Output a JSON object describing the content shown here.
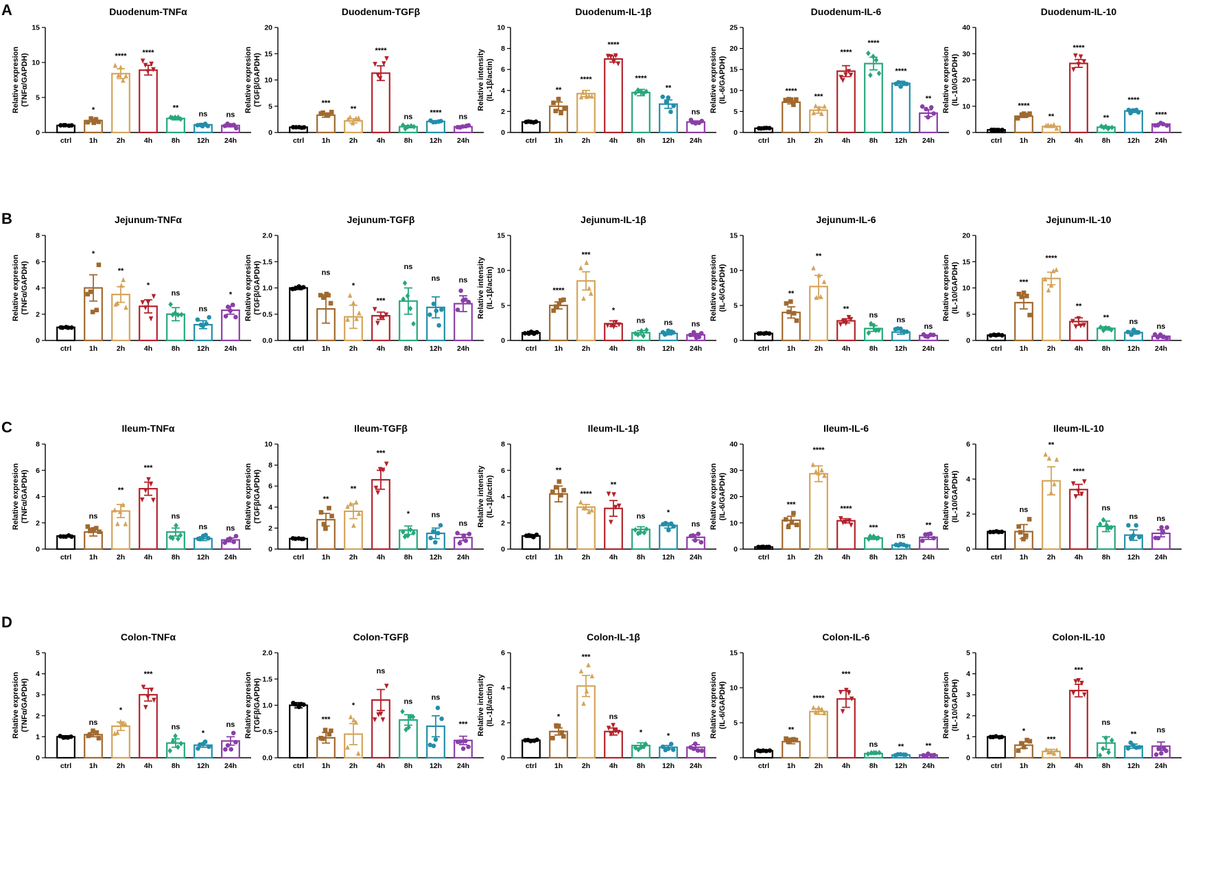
{
  "colors": {
    "ctrl": "#000000",
    "1h": "#a0692e",
    "2h": "#d4a45a",
    "4h": "#b3232b",
    "8h": "#27a87a",
    "12h": "#238ea9",
    "24h": "#8a3ea8"
  },
  "panels": [
    {
      "letter": "A"
    },
    {
      "letter": "B"
    },
    {
      "letter": "C"
    },
    {
      "letter": "D"
    }
  ],
  "chart_data": [
    {
      "type": "bar",
      "title": "Duodenum-TNFα",
      "ylabel": [
        "Relative expresion",
        "(TNFα/GAPDH)"
      ],
      "ylim": [
        0,
        15
      ],
      "yticks": [
        0,
        5,
        10,
        15
      ],
      "categories": [
        "ctrl",
        "1h",
        "2h",
        "4h",
        "8h",
        "12h",
        "24h"
      ],
      "values": [
        1.0,
        1.7,
        8.4,
        8.9,
        2.0,
        1.1,
        1.0
      ],
      "errors": [
        0.1,
        0.2,
        0.7,
        0.7,
        0.2,
        0.2,
        0.2
      ],
      "significance": [
        "",
        "*",
        "****",
        "****",
        "**",
        "ns",
        "ns"
      ]
    },
    {
      "type": "bar",
      "title": "Duodenum-TGFβ",
      "ylabel": [
        "Relative expresion",
        "(TGFβ/GAPDH)"
      ],
      "ylim": [
        0,
        20
      ],
      "yticks": [
        0,
        5,
        10,
        15,
        20
      ],
      "categories": [
        "ctrl",
        "1h",
        "2h",
        "4h",
        "8h",
        "12h",
        "24h"
      ],
      "values": [
        1.0,
        3.3,
        2.2,
        11.3,
        1.1,
        2.1,
        1.1
      ],
      "errors": [
        0.1,
        0.4,
        0.4,
        1.4,
        0.2,
        0.1,
        0.2
      ],
      "significance": [
        "",
        "***",
        "**",
        "****",
        "ns",
        "****",
        "ns"
      ]
    },
    {
      "type": "bar",
      "title": "Duodenum-IL-1β",
      "ylabel": [
        "Relative intensity",
        "(IL-1β/actin)"
      ],
      "ylim": [
        0,
        10
      ],
      "yticks": [
        0,
        2,
        4,
        6,
        8,
        10
      ],
      "categories": [
        "ctrl",
        "1h",
        "2h",
        "4h",
        "8h",
        "12h",
        "24h"
      ],
      "values": [
        1.0,
        2.5,
        3.7,
        7.0,
        3.8,
        2.7,
        1.0
      ],
      "errors": [
        0.05,
        0.4,
        0.3,
        0.3,
        0.3,
        0.4,
        0.1
      ],
      "significance": [
        "",
        "**",
        "****",
        "****",
        "****",
        "**",
        "ns"
      ]
    },
    {
      "type": "bar",
      "title": "Duodenum-IL-6",
      "ylabel": [
        "Relative expresion",
        "(IL-6/GAPDH)"
      ],
      "ylim": [
        0,
        25
      ],
      "yticks": [
        0,
        5,
        10,
        15,
        20,
        25
      ],
      "categories": [
        "ctrl",
        "1h",
        "2h",
        "4h",
        "8h",
        "12h",
        "24h"
      ],
      "values": [
        1.0,
        7.2,
        5.3,
        14.6,
        16.4,
        11.7,
        4.6
      ],
      "errors": [
        0.1,
        0.4,
        0.7,
        1.3,
        1.5,
        0.5,
        0.8
      ],
      "significance": [
        "",
        "****",
        "***",
        "****",
        "****",
        "****",
        "**"
      ]
    },
    {
      "type": "bar",
      "title": "Duodenum-IL-10",
      "ylabel": [
        "Relative expresion",
        "(IL-10/GAPDH)"
      ],
      "ylim": [
        0,
        40
      ],
      "yticks": [
        0,
        10,
        20,
        30,
        40
      ],
      "categories": [
        "ctrl",
        "1h",
        "2h",
        "4h",
        "8h",
        "12h",
        "24h"
      ],
      "values": [
        1.0,
        6.2,
        2.3,
        26.3,
        2.0,
        8.2,
        3.2
      ],
      "errors": [
        0.1,
        0.5,
        0.4,
        1.5,
        0.3,
        0.6,
        0.3
      ],
      "significance": [
        "",
        "****",
        "**",
        "****",
        "**",
        "****",
        "****"
      ]
    },
    {
      "type": "bar",
      "title": "Jejunum-TNFα",
      "ylabel": [
        "Relative expresion",
        "(TNFα/GAPDH)"
      ],
      "ylim": [
        0,
        8
      ],
      "yticks": [
        0,
        2,
        4,
        6,
        8
      ],
      "categories": [
        "ctrl",
        "1h",
        "2h",
        "4h",
        "8h",
        "12h",
        "24h"
      ],
      "values": [
        1.0,
        4.0,
        3.5,
        2.6,
        2.0,
        1.2,
        2.3
      ],
      "errors": [
        0.05,
        1.0,
        0.6,
        0.5,
        0.5,
        0.3,
        0.3
      ],
      "significance": [
        "",
        "*",
        "**",
        "*",
        "ns",
        "ns",
        "*"
      ]
    },
    {
      "type": "bar",
      "title": "Jejunum-TGFβ",
      "ylabel": [
        "Relative expresion",
        "(TGFβ/GAPDH)"
      ],
      "ylim": [
        0,
        2.0
      ],
      "yticks": [
        0.0,
        0.5,
        1.0,
        1.5,
        2.0
      ],
      "decimals": 1,
      "categories": [
        "ctrl",
        "1h",
        "2h",
        "4h",
        "8h",
        "12h",
        "24h"
      ],
      "values": [
        1.0,
        0.6,
        0.45,
        0.47,
        0.75,
        0.63,
        0.7
      ],
      "errors": [
        0.03,
        0.27,
        0.22,
        0.07,
        0.25,
        0.2,
        0.15
      ],
      "significance": [
        "",
        "ns",
        "*",
        "***",
        "ns",
        "ns",
        "ns"
      ]
    },
    {
      "type": "bar",
      "title": "Jejunum-IL-1β",
      "ylabel": [
        "Relative intensity",
        "(IL-1β/actin)"
      ],
      "ylim": [
        0,
        15
      ],
      "yticks": [
        0,
        5,
        10,
        15
      ],
      "categories": [
        "ctrl",
        "1h",
        "2h",
        "4h",
        "8h",
        "12h",
        "24h"
      ],
      "values": [
        1.1,
        5.0,
        8.5,
        2.4,
        1.1,
        1.0,
        0.8
      ],
      "errors": [
        0.2,
        0.5,
        1.3,
        0.4,
        0.3,
        0.2,
        0.2
      ],
      "significance": [
        "",
        "****",
        "***",
        "*",
        "ns",
        "ns",
        "ns"
      ]
    },
    {
      "type": "bar",
      "title": "Jejunum-IL-6",
      "ylabel": [
        "Relative expresion",
        "(IL-6/GAPDH)"
      ],
      "ylim": [
        0,
        15
      ],
      "yticks": [
        0,
        5,
        10,
        15
      ],
      "categories": [
        "ctrl",
        "1h",
        "2h",
        "4h",
        "8h",
        "12h",
        "24h"
      ],
      "values": [
        1.0,
        4.0,
        7.7,
        2.8,
        1.7,
        1.2,
        0.7
      ],
      "errors": [
        0.05,
        0.8,
        1.6,
        0.3,
        0.4,
        0.3,
        0.1
      ],
      "significance": [
        "",
        "**",
        "**",
        "**",
        "ns",
        "ns",
        "ns"
      ]
    },
    {
      "type": "bar",
      "title": "Jejunum-IL-10",
      "ylabel": [
        "Relative expresion",
        "(IL-10/GAPDH)"
      ],
      "ylim": [
        0,
        20
      ],
      "yticks": [
        0,
        5,
        10,
        15,
        20
      ],
      "categories": [
        "ctrl",
        "1h",
        "2h",
        "4h",
        "8h",
        "12h",
        "24h"
      ],
      "values": [
        1.0,
        7.2,
        11.8,
        3.6,
        2.3,
        1.5,
        0.8
      ],
      "errors": [
        0.1,
        1.2,
        1.2,
        0.7,
        0.3,
        0.3,
        0.2
      ],
      "significance": [
        "",
        "***",
        "****",
        "**",
        "**",
        "ns",
        "ns"
      ]
    },
    {
      "type": "bar",
      "title": "Ileum-TNFα",
      "ylabel": [
        "Relative expresion",
        "(TNFα/GAPDH)"
      ],
      "ylim": [
        0,
        8
      ],
      "yticks": [
        0,
        2,
        4,
        6,
        8
      ],
      "categories": [
        "ctrl",
        "1h",
        "2h",
        "4h",
        "8h",
        "12h",
        "24h"
      ],
      "values": [
        1.0,
        1.3,
        2.9,
        4.6,
        1.3,
        0.8,
        0.7
      ],
      "errors": [
        0.05,
        0.3,
        0.5,
        0.5,
        0.3,
        0.15,
        0.15
      ],
      "significance": [
        "",
        "ns",
        "**",
        "***",
        "ns",
        "ns",
        "ns"
      ]
    },
    {
      "type": "bar",
      "title": "Ileum-TGFβ",
      "ylabel": [
        "Relative expresion",
        "(TGFβ/GAPDH)"
      ],
      "ylim": [
        0,
        10
      ],
      "yticks": [
        0,
        2,
        4,
        6,
        8,
        10
      ],
      "categories": [
        "ctrl",
        "1h",
        "2h",
        "4h",
        "8h",
        "12h",
        "24h"
      ],
      "values": [
        1.0,
        2.8,
        3.6,
        6.6,
        1.8,
        1.5,
        1.1
      ],
      "errors": [
        0.05,
        0.6,
        0.7,
        0.9,
        0.4,
        0.5,
        0.3
      ],
      "significance": [
        "",
        "**",
        "**",
        "***",
        "*",
        "ns",
        "ns"
      ]
    },
    {
      "type": "bar",
      "title": "Ileum-IL-1β",
      "ylabel": [
        "Relative intensity",
        "(IL-1β/actin)"
      ],
      "ylim": [
        0,
        8
      ],
      "yticks": [
        0,
        2,
        4,
        6,
        8
      ],
      "categories": [
        "ctrl",
        "1h",
        "2h",
        "4h",
        "8h",
        "12h",
        "24h"
      ],
      "values": [
        1.0,
        4.2,
        3.2,
        3.1,
        1.5,
        1.8,
        0.9
      ],
      "errors": [
        0.1,
        0.6,
        0.2,
        0.6,
        0.2,
        0.2,
        0.2
      ],
      "significance": [
        "",
        "**",
        "****",
        "**",
        "ns",
        "*",
        "ns"
      ]
    },
    {
      "type": "bar",
      "title": "Ileum-IL-6",
      "ylabel": [
        "Relative expresion",
        "(IL-6/GAPDH)"
      ],
      "ylim": [
        0,
        40
      ],
      "yticks": [
        0,
        10,
        20,
        30,
        40
      ],
      "categories": [
        "ctrl",
        "1h",
        "2h",
        "4h",
        "8h",
        "12h",
        "24h"
      ],
      "values": [
        0.8,
        11.0,
        28.7,
        10.8,
        4.2,
        1.5,
        4.5
      ],
      "errors": [
        0.1,
        1.5,
        3.0,
        0.8,
        0.5,
        0.3,
        0.8
      ],
      "significance": [
        "",
        "***",
        "****",
        "****",
        "***",
        "ns",
        "**"
      ]
    },
    {
      "type": "bar",
      "title": "Ileum-IL-10",
      "ylabel": [
        "Relative expresion",
        "(IL-10/GAPDH)"
      ],
      "ylim": [
        0,
        6
      ],
      "yticks": [
        0,
        2,
        4,
        6
      ],
      "categories": [
        "ctrl",
        "1h",
        "2h",
        "4h",
        "8h",
        "12h",
        "24h"
      ],
      "values": [
        1.0,
        1.0,
        3.9,
        3.4,
        1.3,
        0.8,
        0.9
      ],
      "errors": [
        0.03,
        0.4,
        0.8,
        0.3,
        0.3,
        0.3,
        0.2
      ],
      "significance": [
        "",
        "ns",
        "**",
        "****",
        "ns",
        "ns",
        "ns"
      ]
    },
    {
      "type": "bar",
      "title": "Colon-TNFα",
      "ylabel": [
        "Relative expresion",
        "(TNFα/GAPDH)"
      ],
      "ylim": [
        0,
        5
      ],
      "yticks": [
        0,
        1,
        2,
        3,
        4,
        5
      ],
      "categories": [
        "ctrl",
        "1h",
        "2h",
        "4h",
        "8h",
        "12h",
        "24h"
      ],
      "values": [
        1.0,
        1.1,
        1.5,
        3.0,
        0.7,
        0.6,
        0.8
      ],
      "errors": [
        0.05,
        0.1,
        0.2,
        0.3,
        0.2,
        0.1,
        0.2
      ],
      "significance": [
        "",
        "ns",
        "*",
        "***",
        "ns",
        "*",
        "ns"
      ]
    },
    {
      "type": "bar",
      "title": "Colon-TGFβ",
      "ylabel": [
        "Relative expresion",
        "(TGFβ/GAPDH)"
      ],
      "ylim": [
        0,
        2.0
      ],
      "yticks": [
        0.0,
        0.5,
        1.0,
        1.5,
        2.0
      ],
      "decimals": 1,
      "categories": [
        "ctrl",
        "1h",
        "2h",
        "4h",
        "8h",
        "12h",
        "24h"
      ],
      "values": [
        1.0,
        0.38,
        0.45,
        1.1,
        0.72,
        0.6,
        0.33
      ],
      "errors": [
        0.05,
        0.1,
        0.2,
        0.2,
        0.1,
        0.2,
        0.08
      ],
      "significance": [
        "",
        "***",
        "*",
        "ns",
        "ns",
        "ns",
        "***"
      ]
    },
    {
      "type": "bar",
      "title": "Colon-IL-1β",
      "ylabel": [
        "Relative intensity",
        "(IL-1β/actin)"
      ],
      "ylim": [
        0,
        6
      ],
      "yticks": [
        0,
        2,
        4,
        6
      ],
      "categories": [
        "ctrl",
        "1h",
        "2h",
        "4h",
        "8h",
        "12h",
        "24h"
      ],
      "values": [
        1.0,
        1.5,
        4.1,
        1.5,
        0.7,
        0.6,
        0.6
      ],
      "errors": [
        0.05,
        0.2,
        0.6,
        0.2,
        0.15,
        0.1,
        0.15
      ],
      "significance": [
        "",
        "*",
        "***",
        "ns",
        "*",
        "*",
        "ns"
      ]
    },
    {
      "type": "bar",
      "title": "Colon-IL-6",
      "ylabel": [
        "Relative expresion",
        "(IL-6/GAPDH)"
      ],
      "ylim": [
        0,
        15
      ],
      "yticks": [
        0,
        5,
        10,
        15
      ],
      "categories": [
        "ctrl",
        "1h",
        "2h",
        "4h",
        "8h",
        "12h",
        "24h"
      ],
      "values": [
        1.0,
        2.3,
        6.6,
        8.4,
        0.6,
        0.4,
        0.4
      ],
      "errors": [
        0.05,
        0.3,
        0.4,
        1.2,
        0.1,
        0.05,
        0.1
      ],
      "significance": [
        "",
        "**",
        "****",
        "***",
        "ns",
        "**",
        "**"
      ]
    },
    {
      "type": "bar",
      "title": "Colon-IL-10",
      "ylabel": [
        "Relative expresion",
        "(IL-10/GAPDH)"
      ],
      "ylim": [
        0,
        5
      ],
      "yticks": [
        0,
        1,
        2,
        3,
        4,
        5
      ],
      "categories": [
        "ctrl",
        "1h",
        "2h",
        "4h",
        "8h",
        "12h",
        "24h"
      ],
      "values": [
        1.0,
        0.6,
        0.3,
        3.2,
        0.7,
        0.55,
        0.55
      ],
      "errors": [
        0.03,
        0.15,
        0.1,
        0.3,
        0.3,
        0.1,
        0.2
      ],
      "significance": [
        "",
        "*",
        "***",
        "***",
        "ns",
        "**",
        "ns"
      ]
    }
  ]
}
